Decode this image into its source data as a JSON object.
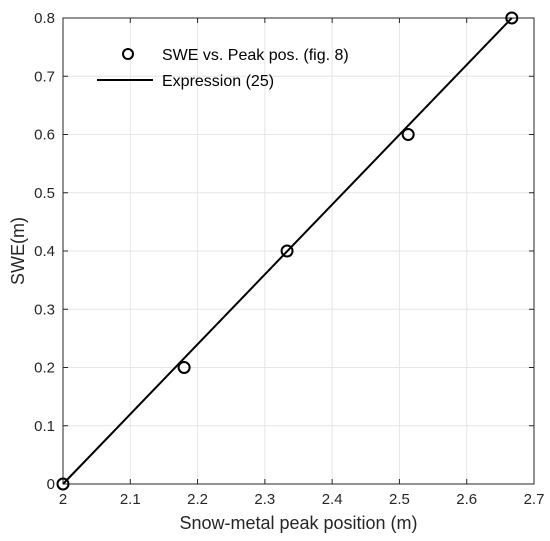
{
  "chart_data": {
    "type": "scatter",
    "title": "",
    "xlabel": "Snow-metal peak position (m)",
    "ylabel": "SWE(m)",
    "xlim": [
      2,
      2.7
    ],
    "ylim": [
      0,
      0.8
    ],
    "xticks": [
      "2",
      "2.1",
      "2.2",
      "2.3",
      "2.4",
      "2.5",
      "2.6",
      "2.7"
    ],
    "yticks": [
      "0",
      "0.1",
      "0.2",
      "0.3",
      "0.4",
      "0.5",
      "0.6",
      "0.7",
      "0.8"
    ],
    "grid": true,
    "legend_position": "top-left",
    "series": [
      {
        "name": "SWE vs. Peak pos. (fig. 8)",
        "kind": "markers",
        "marker": "circle-open",
        "color": "#000000",
        "x": [
          2.0,
          2.18,
          2.333,
          2.513,
          2.667
        ],
        "y": [
          0.0,
          0.2,
          0.4,
          0.6,
          0.8
        ]
      },
      {
        "name": "Expression (25)",
        "kind": "line",
        "color": "#000000",
        "x": [
          2.0,
          2.667
        ],
        "y": [
          0.0,
          0.8
        ]
      }
    ]
  }
}
